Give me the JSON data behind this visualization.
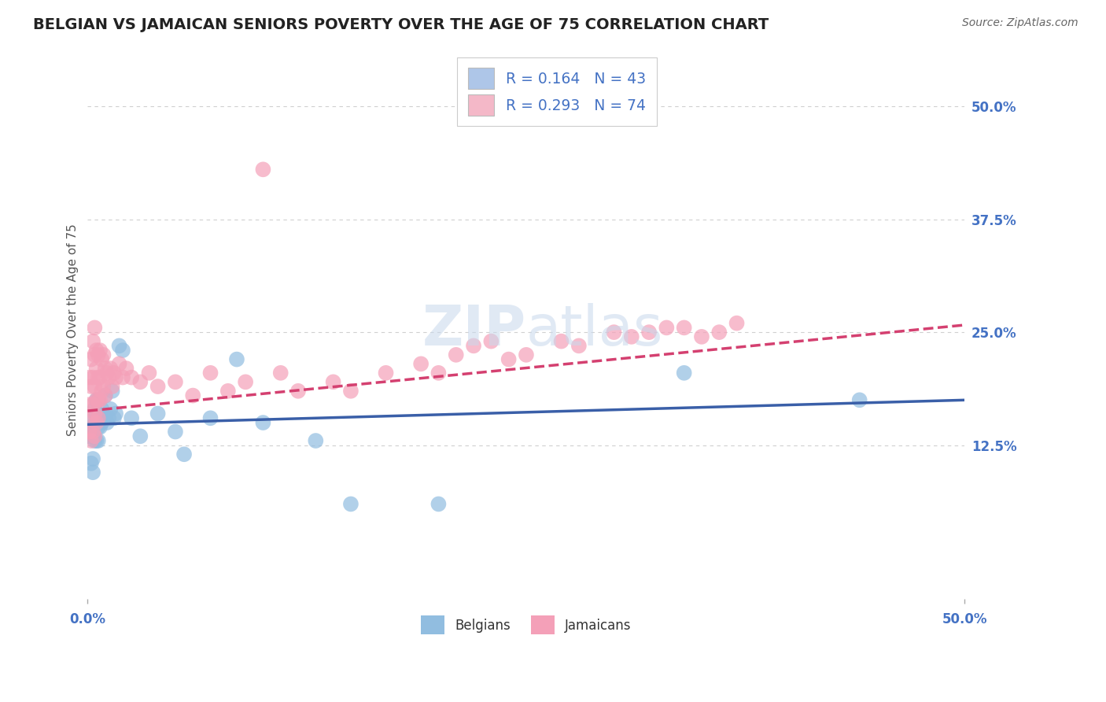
{
  "title": "BELGIAN VS JAMAICAN SENIORS POVERTY OVER THE AGE OF 75 CORRELATION CHART",
  "source": "Source: ZipAtlas.com",
  "ylabel": "Seniors Poverty Over the Age of 75",
  "right_ytick_labels": [
    "50.0%",
    "37.5%",
    "25.0%",
    "12.5%"
  ],
  "right_ytick_values": [
    0.5,
    0.375,
    0.25,
    0.125
  ],
  "xmin": 0.0,
  "xmax": 0.5,
  "ymin": -0.045,
  "ymax": 0.55,
  "legend_label1": "R = 0.164   N = 43",
  "legend_label2": "R = 0.293   N = 74",
  "legend_color1": "#aec6e8",
  "legend_color2": "#f4b8c8",
  "title_color": "#222222",
  "title_fontsize": 14,
  "source_color": "#666666",
  "source_fontsize": 10,
  "ylabel_fontsize": 11,
  "tick_label_color": "#4472c4",
  "tick_label_fontsize": 12,
  "grid_color": "#d0d0d0",
  "background_color": "#ffffff",
  "blue_dot_color": "#91bde0",
  "pink_dot_color": "#f4a0b8",
  "blue_line_color": "#3a5fa8",
  "pink_line_color": "#d44070",
  "legend_text_color": "#4472c4",
  "blue_line_start_y": 0.148,
  "blue_line_end_y": 0.175,
  "pink_line_start_y": 0.163,
  "pink_line_end_y": 0.258,
  "belgians_x": [
    0.001,
    0.001,
    0.002,
    0.002,
    0.003,
    0.003,
    0.003,
    0.004,
    0.004,
    0.005,
    0.005,
    0.005,
    0.006,
    0.006,
    0.006,
    0.007,
    0.007,
    0.008,
    0.008,
    0.009,
    0.01,
    0.01,
    0.011,
    0.012,
    0.013,
    0.014,
    0.015,
    0.016,
    0.018,
    0.02,
    0.025,
    0.03,
    0.04,
    0.05,
    0.055,
    0.07,
    0.085,
    0.1,
    0.13,
    0.15,
    0.2,
    0.34,
    0.44
  ],
  "belgians_y": [
    0.155,
    0.135,
    0.145,
    0.105,
    0.11,
    0.145,
    0.095,
    0.165,
    0.13,
    0.16,
    0.13,
    0.175,
    0.175,
    0.145,
    0.13,
    0.155,
    0.145,
    0.165,
    0.15,
    0.155,
    0.155,
    0.18,
    0.15,
    0.155,
    0.165,
    0.185,
    0.155,
    0.16,
    0.235,
    0.23,
    0.155,
    0.135,
    0.16,
    0.14,
    0.115,
    0.155,
    0.22,
    0.15,
    0.13,
    0.06,
    0.06,
    0.205,
    0.175
  ],
  "jamaicans_x": [
    0.001,
    0.001,
    0.001,
    0.002,
    0.002,
    0.002,
    0.002,
    0.003,
    0.003,
    0.003,
    0.003,
    0.004,
    0.004,
    0.004,
    0.004,
    0.004,
    0.005,
    0.005,
    0.005,
    0.005,
    0.006,
    0.006,
    0.006,
    0.006,
    0.007,
    0.007,
    0.007,
    0.008,
    0.008,
    0.009,
    0.009,
    0.01,
    0.01,
    0.011,
    0.012,
    0.013,
    0.014,
    0.015,
    0.016,
    0.018,
    0.02,
    0.022,
    0.025,
    0.03,
    0.035,
    0.04,
    0.05,
    0.06,
    0.07,
    0.08,
    0.09,
    0.1,
    0.11,
    0.12,
    0.14,
    0.15,
    0.17,
    0.19,
    0.2,
    0.21,
    0.22,
    0.23,
    0.24,
    0.25,
    0.27,
    0.28,
    0.3,
    0.31,
    0.32,
    0.33,
    0.34,
    0.35,
    0.36,
    0.37
  ],
  "jamaicans_y": [
    0.2,
    0.17,
    0.14,
    0.22,
    0.19,
    0.155,
    0.13,
    0.24,
    0.2,
    0.17,
    0.14,
    0.255,
    0.225,
    0.19,
    0.16,
    0.135,
    0.23,
    0.21,
    0.175,
    0.15,
    0.225,
    0.2,
    0.175,
    0.155,
    0.23,
    0.2,
    0.175,
    0.22,
    0.185,
    0.225,
    0.19,
    0.21,
    0.18,
    0.205,
    0.2,
    0.21,
    0.19,
    0.205,
    0.2,
    0.215,
    0.2,
    0.21,
    0.2,
    0.195,
    0.205,
    0.19,
    0.195,
    0.18,
    0.205,
    0.185,
    0.195,
    0.43,
    0.205,
    0.185,
    0.195,
    0.185,
    0.205,
    0.215,
    0.205,
    0.225,
    0.235,
    0.24,
    0.22,
    0.225,
    0.24,
    0.235,
    0.25,
    0.245,
    0.25,
    0.255,
    0.255,
    0.245,
    0.25,
    0.26
  ]
}
